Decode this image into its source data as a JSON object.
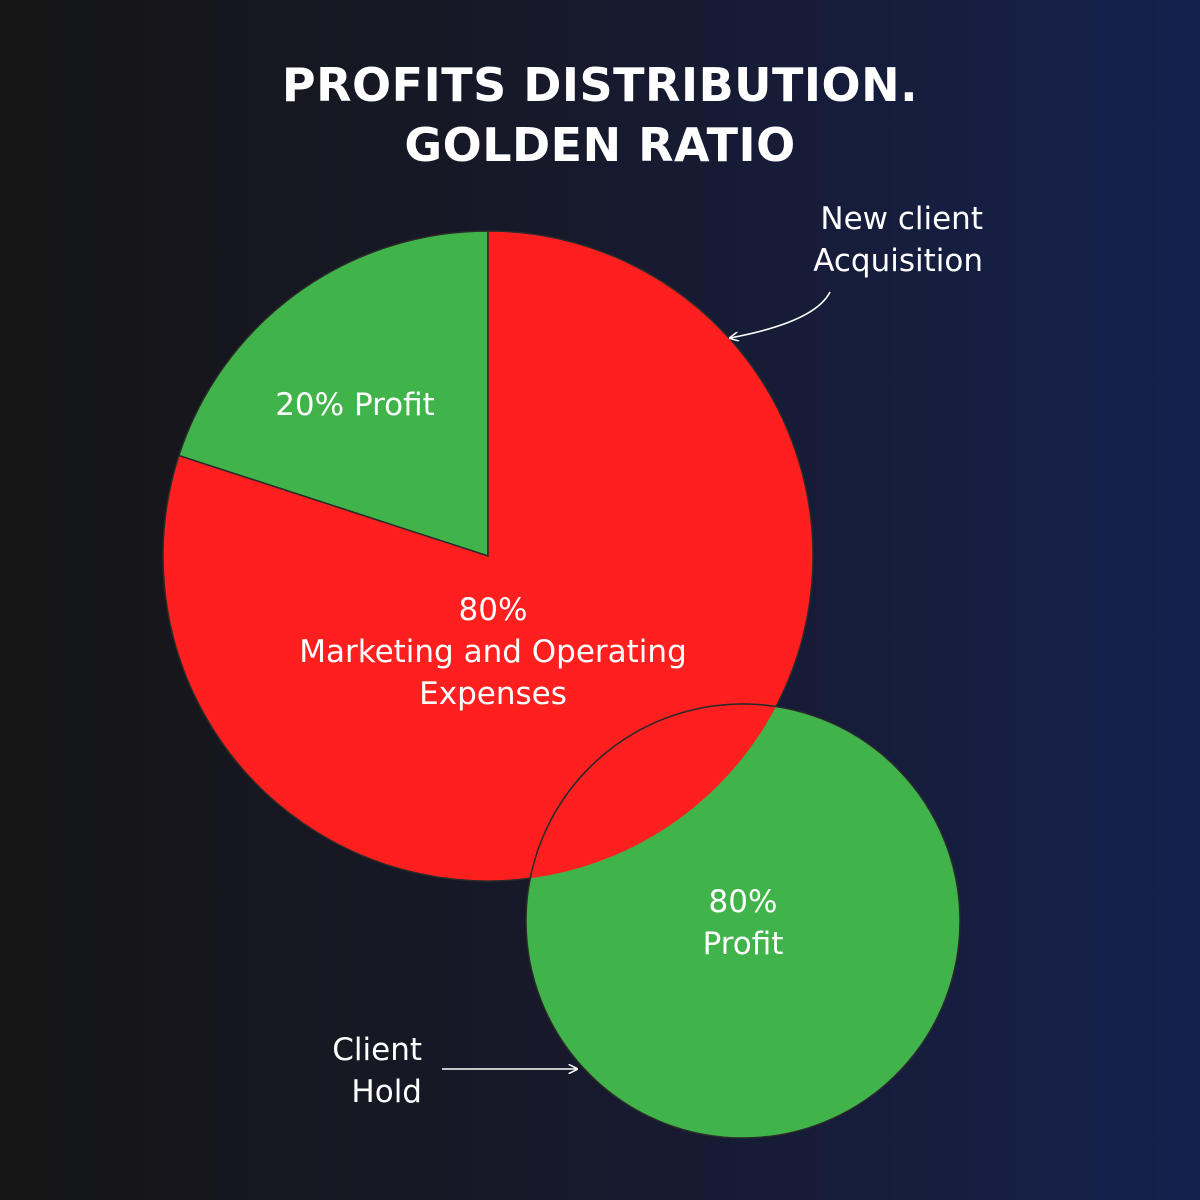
{
  "title": {
    "line1": "PROFITS DISTRIBUTION.",
    "line2": "GOLDEN RATIO"
  },
  "colors": {
    "profit": "#41b34b",
    "expenses": "#ff1f1f",
    "outline": "#2a2a2a"
  },
  "chart_data": [
    {
      "type": "pie",
      "slices": [
        {
          "label": "20% Profit",
          "value": 20,
          "color": "#41b34b"
        },
        {
          "label_lines": [
            "80%",
            "Marketing and Operating",
            "Expenses"
          ],
          "value": 80,
          "color": "#ff1f1f"
        }
      ],
      "annotation": {
        "lines": [
          "New client",
          "Acquisition"
        ]
      }
    },
    {
      "type": "pie",
      "slices": [
        {
          "label_lines": [
            "80%",
            "Profit"
          ],
          "value": 80,
          "color": "#41b34b"
        }
      ],
      "annotation": {
        "lines": [
          "Client",
          "Hold"
        ]
      }
    }
  ]
}
